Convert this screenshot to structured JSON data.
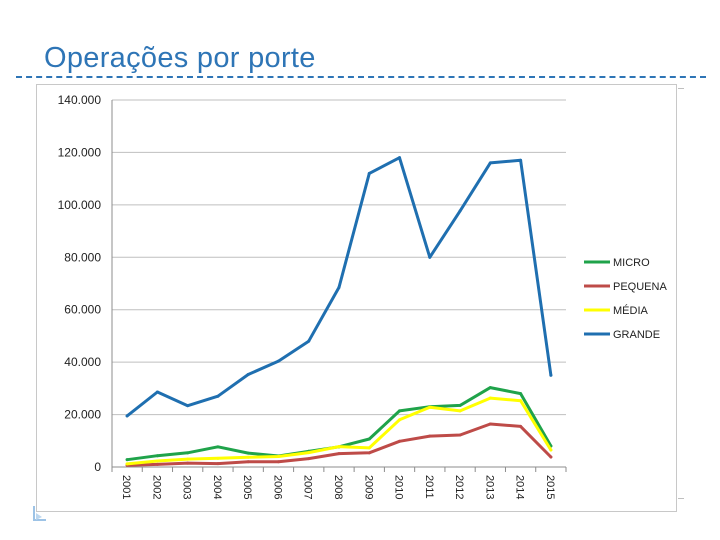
{
  "slide": {
    "title": "Operações por porte"
  },
  "chart_data": {
    "type": "line",
    "title": "",
    "xlabel": "",
    "ylabel": "",
    "ylim": [
      0,
      140000
    ],
    "y_ticks": [
      0,
      20000,
      40000,
      60000,
      80000,
      100000,
      120000,
      140000
    ],
    "y_tick_labels": [
      "0",
      "20.000",
      "40.000",
      "60.000",
      "80.000",
      "100.000",
      "120.000",
      "140.000"
    ],
    "x": [
      "2001",
      "2002",
      "2003",
      "2004",
      "2005",
      "2006",
      "2007",
      "2008",
      "2009",
      "2010",
      "2011",
      "2012",
      "2013",
      "2014",
      "2015"
    ],
    "grid": true,
    "legend_position": "right",
    "series": [
      {
        "name": "MICRO",
        "color": "#1fa34a",
        "values": [
          2800,
          4300,
          5400,
          7700,
          5300,
          4200,
          6000,
          7700,
          10700,
          21400,
          23000,
          23500,
          30300,
          28000,
          8000
        ]
      },
      {
        "name": "PEQUENA",
        "color": "#be4b48",
        "values": [
          700,
          1000,
          1500,
          1300,
          2000,
          2000,
          3200,
          5100,
          5400,
          9800,
          11800,
          12200,
          16400,
          15500,
          3800
        ]
      },
      {
        "name": "MÉDIA",
        "color": "#ffff00",
        "values": [
          1200,
          2300,
          3000,
          3300,
          3700,
          4000,
          5500,
          7800,
          7300,
          18000,
          22800,
          21400,
          26300,
          25300,
          6500
        ]
      },
      {
        "name": "GRANDE",
        "color": "#1f6fb0",
        "values": [
          19500,
          28600,
          23400,
          27000,
          35300,
          40400,
          48000,
          68500,
          112000,
          118000,
          80000,
          97700,
          116000,
          117000,
          35000
        ]
      }
    ]
  }
}
